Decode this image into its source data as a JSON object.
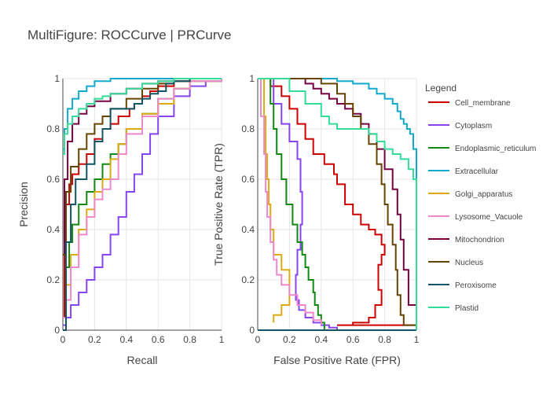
{
  "title": "MultiFigure: ROCCurve | PRCurve",
  "legend": {
    "title": "Legend",
    "placement": "right",
    "items": [
      {
        "name": "Cell_membrane",
        "color": "#cc0000"
      },
      {
        "name": "Cytoplasm",
        "color": "#8844ee"
      },
      {
        "name": "Endoplasmic_reticulum",
        "color": "#118811"
      },
      {
        "name": "Extracellular",
        "color": "#11aacc"
      },
      {
        "name": "Golgi_apparatus",
        "color": "#ddaa11"
      },
      {
        "name": "Lysosome_Vacuole",
        "color": "#ee88cc"
      },
      {
        "name": "Mitochondrion",
        "color": "#770044"
      },
      {
        "name": "Nucleus",
        "color": "#664400"
      },
      {
        "name": "Peroxisome",
        "color": "#115566"
      },
      {
        "name": "Plastid",
        "color": "#33dd99"
      }
    ]
  },
  "chart_data": [
    {
      "type": "line",
      "xlabel": "Recall",
      "ylabel": "Precision",
      "xlim": [
        0,
        1
      ],
      "ylim": [
        0,
        1
      ],
      "xticks": [
        "0",
        "0.2",
        "0.4",
        "0.6",
        "0.8",
        "1"
      ],
      "yticks": [
        "0",
        "0.2",
        "0.4",
        "0.6",
        "0.8",
        "1"
      ],
      "grid": true,
      "series": [
        {
          "name": "Cell_membrane",
          "color": "#cc0000",
          "x": [
            0.0,
            0.01,
            0.02,
            0.04,
            0.06,
            0.1,
            0.15,
            0.2,
            0.25,
            0.3,
            0.35,
            0.42,
            0.45,
            0.5,
            0.55,
            0.6,
            0.7,
            0.8,
            1.0
          ],
          "y": [
            0.05,
            0.35,
            0.5,
            0.58,
            0.62,
            0.66,
            0.7,
            0.76,
            0.8,
            0.82,
            0.85,
            0.88,
            0.9,
            0.93,
            0.95,
            0.97,
            0.99,
            1.0,
            1.0
          ]
        },
        {
          "name": "Cytoplasm",
          "color": "#8844ee",
          "x": [
            0.0,
            0.02,
            0.05,
            0.1,
            0.15,
            0.2,
            0.25,
            0.3,
            0.35,
            0.4,
            0.45,
            0.5,
            0.55,
            0.6,
            0.7,
            0.8,
            0.9,
            1.0
          ],
          "y": [
            0.02,
            0.05,
            0.1,
            0.15,
            0.2,
            0.25,
            0.3,
            0.38,
            0.45,
            0.55,
            0.62,
            0.7,
            0.78,
            0.85,
            0.93,
            0.97,
            0.99,
            1.0
          ]
        },
        {
          "name": "Endoplasmic_reticulum",
          "color": "#118811",
          "x": [
            0.0,
            0.02,
            0.04,
            0.06,
            0.1,
            0.15,
            0.2,
            0.25,
            0.3,
            0.35,
            0.4,
            0.5,
            0.6,
            0.7,
            0.8,
            1.0
          ],
          "y": [
            0.05,
            0.25,
            0.35,
            0.42,
            0.5,
            0.55,
            0.6,
            0.66,
            0.7,
            0.74,
            0.8,
            0.86,
            0.92,
            0.96,
            0.99,
            1.0
          ]
        },
        {
          "name": "Extracellular",
          "color": "#11aacc",
          "x": [
            0.0,
            0.01,
            0.03,
            0.06,
            0.1,
            0.15,
            0.2,
            0.3,
            0.4,
            0.6,
            0.8,
            1.0
          ],
          "y": [
            0.72,
            0.8,
            0.88,
            0.92,
            0.95,
            0.97,
            0.99,
            1.0,
            1.0,
            1.0,
            1.0,
            1.0
          ]
        },
        {
          "name": "Golgi_apparatus",
          "color": "#ddaa11",
          "x": [
            0.0,
            0.02,
            0.05,
            0.1,
            0.15,
            0.2,
            0.25,
            0.3,
            0.35,
            0.4,
            0.5,
            0.6,
            0.7,
            0.8,
            1.0
          ],
          "y": [
            0.05,
            0.18,
            0.3,
            0.4,
            0.48,
            0.55,
            0.6,
            0.68,
            0.74,
            0.8,
            0.86,
            0.9,
            0.96,
            0.99,
            1.0
          ]
        },
        {
          "name": "Lysosome_Vacuole",
          "color": "#ee88cc",
          "x": [
            0.0,
            0.02,
            0.05,
            0.1,
            0.15,
            0.2,
            0.25,
            0.3,
            0.35,
            0.4,
            0.5,
            0.6,
            0.7,
            0.8,
            1.0
          ],
          "y": [
            0.05,
            0.12,
            0.25,
            0.38,
            0.45,
            0.52,
            0.56,
            0.6,
            0.7,
            0.78,
            0.85,
            0.92,
            0.96,
            0.99,
            1.0
          ]
        },
        {
          "name": "Mitochondrion",
          "color": "#770044",
          "x": [
            0.0,
            0.01,
            0.03,
            0.06,
            0.1,
            0.15,
            0.2,
            0.3,
            0.4,
            0.5,
            0.6,
            0.7,
            0.8,
            1.0
          ],
          "y": [
            0.3,
            0.6,
            0.75,
            0.82,
            0.86,
            0.89,
            0.91,
            0.94,
            0.96,
            0.98,
            0.99,
            1.0,
            1.0,
            1.0
          ]
        },
        {
          "name": "Nucleus",
          "color": "#664400",
          "x": [
            0.0,
            0.02,
            0.05,
            0.1,
            0.15,
            0.2,
            0.25,
            0.3,
            0.4,
            0.5,
            0.6,
            0.7,
            0.8,
            1.0
          ],
          "y": [
            0.3,
            0.55,
            0.65,
            0.72,
            0.78,
            0.82,
            0.85,
            0.88,
            0.92,
            0.96,
            0.98,
            0.99,
            1.0,
            1.0
          ]
        },
        {
          "name": "Peroxisome",
          "color": "#115566",
          "x": [
            0.0,
            0.02,
            0.05,
            0.08,
            0.1,
            0.15,
            0.2,
            0.25,
            0.3,
            0.4,
            0.45,
            0.5,
            0.55,
            0.6,
            0.65,
            0.7,
            0.8,
            1.0
          ],
          "y": [
            0.0,
            0.35,
            0.5,
            0.6,
            0.6,
            0.66,
            0.75,
            0.8,
            0.88,
            0.88,
            0.9,
            0.92,
            0.94,
            0.95,
            0.98,
            0.99,
            1.0,
            1.0
          ]
        },
        {
          "name": "Plastid",
          "color": "#33dd99",
          "x": [
            0.0,
            0.01,
            0.03,
            0.06,
            0.1,
            0.15,
            0.2,
            0.25,
            0.3,
            0.4,
            0.5,
            0.6,
            0.7,
            0.8,
            1.0
          ],
          "y": [
            0.7,
            0.78,
            0.82,
            0.85,
            0.88,
            0.9,
            0.92,
            0.93,
            0.94,
            0.96,
            0.98,
            0.99,
            1.0,
            1.0,
            1.0
          ]
        }
      ]
    },
    {
      "type": "line",
      "xlabel": "False Positive Rate (FPR)",
      "ylabel": "True Positive Rate (TPR)",
      "xlim": [
        0,
        1
      ],
      "ylim": [
        0,
        1
      ],
      "xticks": [
        "0",
        "0.2",
        "0.4",
        "0.6",
        "0.8",
        "1"
      ],
      "yticks": [
        "0",
        "0.2",
        "0.4",
        "0.6",
        "0.8",
        "1"
      ],
      "grid": true,
      "series": [
        {
          "name": "Cell_membrane",
          "color": "#cc0000",
          "x": [
            0.02,
            0.08,
            0.15,
            0.2,
            0.25,
            0.3,
            0.35,
            0.42,
            0.48,
            0.5,
            0.55,
            0.6,
            0.65,
            0.7,
            0.74,
            0.78,
            0.8,
            0.78,
            0.76,
            0.78,
            0.74,
            0.7,
            0.6,
            0.5,
            1.0
          ],
          "y": [
            1.0,
            0.97,
            0.93,
            0.88,
            0.82,
            0.76,
            0.7,
            0.66,
            0.62,
            0.58,
            0.5,
            0.46,
            0.42,
            0.4,
            0.38,
            0.34,
            0.3,
            0.26,
            0.16,
            0.1,
            0.05,
            0.03,
            0.02,
            0.02,
            0.02
          ]
        },
        {
          "name": "Cytoplasm",
          "color": "#8844ee",
          "x": [
            0.05,
            0.1,
            0.15,
            0.2,
            0.25,
            0.27,
            0.28,
            0.27,
            0.25,
            0.24,
            0.26,
            0.3,
            0.35,
            0.4,
            0.45,
            0.5
          ],
          "y": [
            1.0,
            0.9,
            0.82,
            0.75,
            0.68,
            0.55,
            0.42,
            0.32,
            0.22,
            0.12,
            0.08,
            0.05,
            0.03,
            0.02,
            0.01,
            0.0
          ]
        },
        {
          "name": "Endoplasmic_reticulum",
          "color": "#118811",
          "x": [
            0.05,
            0.08,
            0.1,
            0.12,
            0.15,
            0.18,
            0.22,
            0.25,
            0.28,
            0.3,
            0.32,
            0.35,
            0.36,
            0.38,
            0.4,
            0.42
          ],
          "y": [
            1.0,
            0.9,
            0.8,
            0.7,
            0.6,
            0.5,
            0.42,
            0.35,
            0.3,
            0.25,
            0.2,
            0.15,
            0.1,
            0.06,
            0.03,
            0.0
          ]
        },
        {
          "name": "Extracellular",
          "color": "#11aacc",
          "x": [
            0.0,
            0.3,
            0.5,
            0.6,
            0.7,
            0.75,
            0.8,
            0.85,
            0.88,
            0.9,
            0.92,
            0.94,
            0.96,
            0.98,
            1.0,
            1.0
          ],
          "y": [
            1.0,
            1.0,
            0.99,
            0.98,
            0.96,
            0.94,
            0.92,
            0.9,
            0.87,
            0.84,
            0.82,
            0.8,
            0.78,
            0.72,
            0.6,
            0.0
          ]
        },
        {
          "name": "Golgi_apparatus",
          "color": "#ddaa11",
          "x": [
            0.02,
            0.04,
            0.05,
            0.06,
            0.07,
            0.08,
            0.1,
            0.15,
            0.2,
            0.2,
            0.15,
            0.1
          ],
          "y": [
            1.0,
            0.85,
            0.7,
            0.6,
            0.5,
            0.4,
            0.3,
            0.24,
            0.16,
            0.1,
            0.06,
            0.03
          ]
        },
        {
          "name": "Lysosome_Vacuole",
          "color": "#ee88cc",
          "x": [
            0.0,
            0.02,
            0.04,
            0.05,
            0.06,
            0.08,
            0.1,
            0.12,
            0.15,
            0.2,
            0.25,
            0.3,
            0.35,
            0.4
          ],
          "y": [
            1.0,
            0.85,
            0.7,
            0.55,
            0.45,
            0.35,
            0.28,
            0.22,
            0.18,
            0.14,
            0.1,
            0.07,
            0.04,
            0.02
          ]
        },
        {
          "name": "Mitochondrion",
          "color": "#770044",
          "x": [
            0.0,
            0.2,
            0.3,
            0.35,
            0.4,
            0.45,
            0.5,
            0.55,
            0.6,
            0.65,
            0.7,
            0.75,
            0.8,
            0.85,
            0.88,
            0.9,
            0.92,
            0.95,
            1.0
          ],
          "y": [
            1.0,
            1.0,
            0.98,
            0.96,
            0.94,
            0.92,
            0.9,
            0.88,
            0.86,
            0.82,
            0.78,
            0.72,
            0.64,
            0.56,
            0.46,
            0.36,
            0.24,
            0.1,
            0.0
          ]
        },
        {
          "name": "Nucleus",
          "color": "#664400",
          "x": [
            0.0,
            0.3,
            0.4,
            0.5,
            0.55,
            0.6,
            0.65,
            0.7,
            0.75,
            0.78,
            0.8,
            0.82,
            0.85,
            0.87,
            0.88,
            0.9,
            0.92,
            1.0
          ],
          "y": [
            1.0,
            1.0,
            0.98,
            0.94,
            0.9,
            0.85,
            0.8,
            0.74,
            0.66,
            0.58,
            0.5,
            0.42,
            0.34,
            0.24,
            0.14,
            0.06,
            0.02,
            0.0
          ]
        },
        {
          "name": "Peroxisome",
          "color": "#115566",
          "x": [
            0.0,
            1.0
          ],
          "y": [
            0.0,
            0.0
          ]
        },
        {
          "name": "Plastid",
          "color": "#33dd99",
          "x": [
            0.0,
            0.1,
            0.2,
            0.3,
            0.4,
            0.45,
            0.5,
            0.6,
            0.7,
            0.75,
            0.8,
            0.85,
            0.9,
            0.95,
            0.98,
            1.0
          ],
          "y": [
            1.0,
            1.0,
            0.95,
            0.9,
            0.85,
            0.82,
            0.8,
            0.8,
            0.78,
            0.75,
            0.72,
            0.7,
            0.68,
            0.64,
            0.6,
            0.0
          ]
        }
      ]
    }
  ]
}
